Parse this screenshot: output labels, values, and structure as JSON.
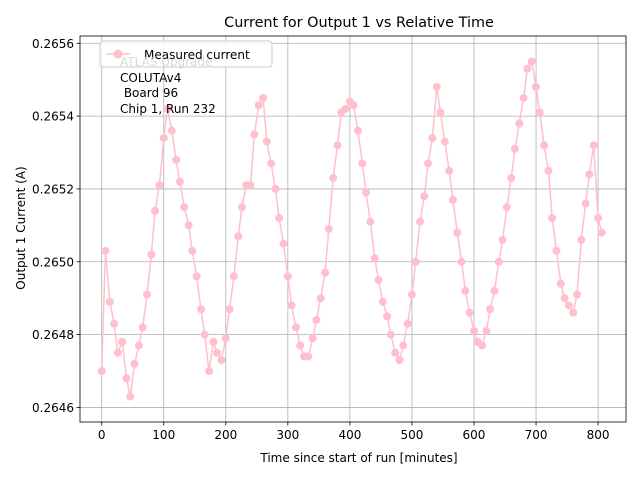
{
  "chart_data": {
    "type": "line",
    "title": "Current for Output 1 vs Relative Time",
    "xlabel": "Time since start of run [minutes]",
    "ylabel": "Output 1 Current (A)",
    "xlim": [
      -35,
      845
    ],
    "ylim": [
      0.26456,
      0.26562
    ],
    "xticks": [
      0,
      100,
      200,
      300,
      400,
      500,
      600,
      700,
      800
    ],
    "yticks": [
      0.2646,
      0.2648,
      0.265,
      0.2652,
      0.2654,
      0.2656
    ],
    "ytick_labels": [
      "0.2646",
      "0.2648",
      "0.2650",
      "0.2652",
      "0.2654",
      "0.2656"
    ],
    "grid": true,
    "legend": {
      "position": "top-left",
      "label": "Measured current"
    },
    "annotation": {
      "watermark": "ATLAS Upgrade",
      "lines": [
        "COLUTAv4",
        " Board 96",
        "Chip 1, Run 232"
      ]
    },
    "series": [
      {
        "name": "Measured current",
        "color": "#ffc0cb",
        "x": [
          0,
          6,
          13,
          20,
          26,
          33,
          40,
          46,
          53,
          60,
          66,
          73,
          80,
          86,
          93,
          100,
          106,
          113,
          120,
          126,
          133,
          140,
          146,
          153,
          160,
          166,
          173,
          180,
          186,
          193,
          200,
          206,
          213,
          220,
          226,
          233,
          240,
          246,
          253,
          260,
          266,
          273,
          280,
          286,
          293,
          300,
          306,
          313,
          320,
          326,
          333,
          340,
          346,
          353,
          360,
          366,
          373,
          380,
          386,
          393,
          400,
          406,
          413,
          420,
          426,
          433,
          440,
          446,
          453,
          460,
          466,
          473,
          480,
          486,
          493,
          500,
          506,
          513,
          520,
          526,
          533,
          540,
          546,
          553,
          560,
          566,
          573,
          580,
          586,
          593,
          600,
          606,
          613,
          620,
          626,
          633,
          640,
          646,
          653,
          660,
          666,
          673,
          680,
          686,
          693,
          700,
          706,
          713,
          720,
          726,
          733,
          740,
          746,
          753,
          760,
          766,
          773,
          780,
          786,
          793,
          800,
          806
        ],
        "y": [
          0.2647,
          0.26503,
          0.26489,
          0.26483,
          0.26475,
          0.26478,
          0.26468,
          0.26463,
          0.26472,
          0.26477,
          0.26482,
          0.26491,
          0.26502,
          0.26514,
          0.26521,
          0.26534,
          0.26542,
          0.26536,
          0.26528,
          0.26522,
          0.26515,
          0.2651,
          0.26503,
          0.26496,
          0.26487,
          0.2648,
          0.2647,
          0.26478,
          0.26475,
          0.26473,
          0.26479,
          0.26487,
          0.26496,
          0.26507,
          0.26515,
          0.26521,
          0.26521,
          0.26535,
          0.26543,
          0.26545,
          0.26533,
          0.26527,
          0.2652,
          0.26512,
          0.26505,
          0.26496,
          0.26488,
          0.26482,
          0.26477,
          0.26474,
          0.26474,
          0.26479,
          0.26484,
          0.2649,
          0.26497,
          0.26509,
          0.26523,
          0.26532,
          0.26541,
          0.26542,
          0.26544,
          0.26543,
          0.26536,
          0.26527,
          0.26519,
          0.26511,
          0.26501,
          0.26495,
          0.26489,
          0.26485,
          0.2648,
          0.26475,
          0.26473,
          0.26477,
          0.26483,
          0.26491,
          0.265,
          0.26511,
          0.26518,
          0.26527,
          0.26534,
          0.26548,
          0.26541,
          0.26533,
          0.26525,
          0.26517,
          0.26508,
          0.265,
          0.26492,
          0.26486,
          0.26481,
          0.26478,
          0.26477,
          0.26481,
          0.26487,
          0.26492,
          0.265,
          0.26506,
          0.26515,
          0.26523,
          0.26531,
          0.26538,
          0.26545,
          0.26553,
          0.26555,
          0.26548,
          0.26541,
          0.26532,
          0.26525,
          0.26512,
          0.26503,
          0.26494,
          0.2649,
          0.26488,
          0.26486,
          0.26491,
          0.26506,
          0.26516,
          0.26524,
          0.26532,
          0.26512,
          0.26508
        ]
      }
    ]
  }
}
